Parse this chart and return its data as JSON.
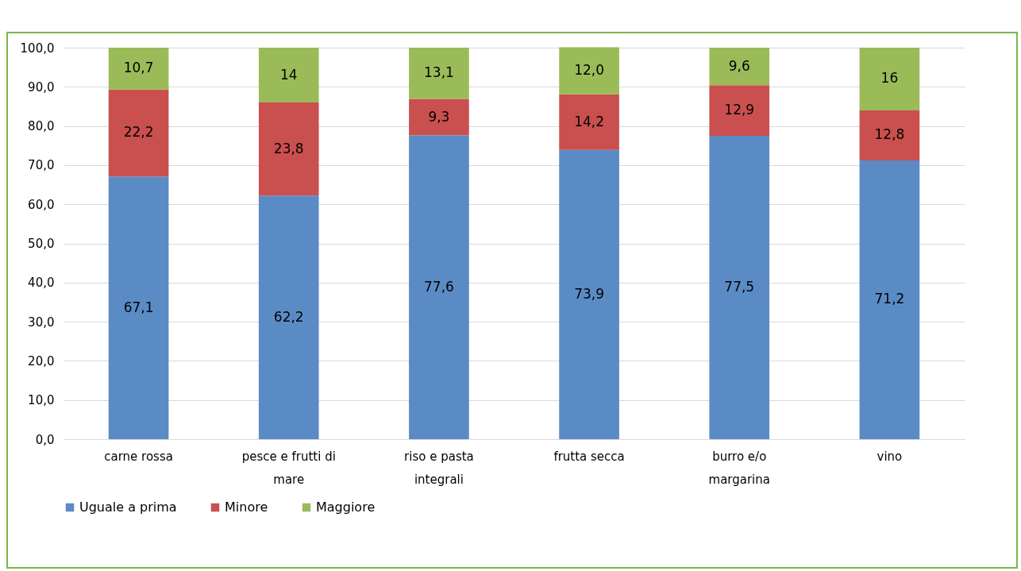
{
  "chart_data": {
    "type": "bar",
    "stacked": true,
    "categories": [
      "carne rossa",
      "pesce e frutti di mare",
      "riso e pasta integrali",
      "frutta secca",
      "burro e/o margarina",
      "vino"
    ],
    "series": [
      {
        "name": "Uguale a prima",
        "color": "#5b8bc5",
        "values": [
          67.1,
          62.2,
          77.6,
          73.9,
          77.5,
          71.2
        ],
        "value_labels": [
          "67,1",
          "62,2",
          "77,6",
          "73,9",
          "77,5",
          "71,2"
        ]
      },
      {
        "name": "Minore",
        "color": "#c9504f",
        "values": [
          22.2,
          23.8,
          9.3,
          14.2,
          12.9,
          12.8
        ],
        "value_labels": [
          "22,2",
          "23,8",
          "9,3",
          "14,2",
          "12,9",
          "12,8"
        ]
      },
      {
        "name": "Maggiore",
        "color": "#9bbb59",
        "values": [
          10.7,
          14,
          13.1,
          12.0,
          9.6,
          16
        ],
        "value_labels": [
          "10,7",
          "14",
          "13,1",
          "12,0",
          "9,6",
          "16"
        ]
      }
    ],
    "ylim": [
      0,
      100
    ],
    "yticks": [
      {
        "value": 0,
        "label": "0,0"
      },
      {
        "value": 10,
        "label": "10,0"
      },
      {
        "value": 20,
        "label": "20,0"
      },
      {
        "value": 30,
        "label": "30,0"
      },
      {
        "value": 40,
        "label": "40,0"
      },
      {
        "value": 50,
        "label": "50,0"
      },
      {
        "value": 60,
        "label": "60,0"
      },
      {
        "value": 70,
        "label": "70,0"
      },
      {
        "value": 80,
        "label": "80,0"
      },
      {
        "value": 90,
        "label": "90,0"
      },
      {
        "value": 100,
        "label": "100,0"
      }
    ],
    "grid": "y",
    "legend": "bottom"
  }
}
